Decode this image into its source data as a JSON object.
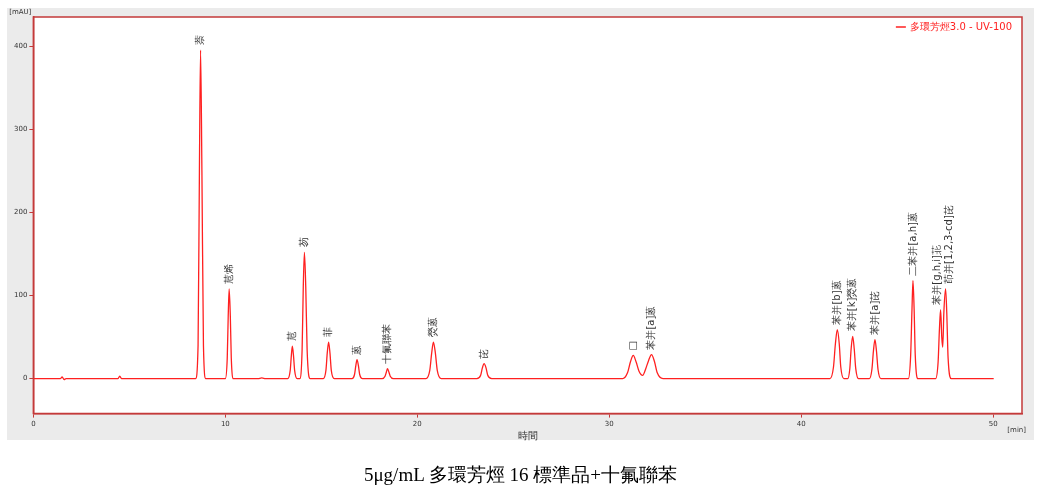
{
  "chart_data": {
    "type": "line",
    "title": "5μg/mL 多環芳烴 16 標準品+十氟聯苯",
    "xlabel": "時間",
    "ylabel": "[mAU]",
    "x": [
      0,
      1.4,
      1.5,
      1.6,
      1.7,
      4.4,
      4.5,
      4.6,
      8.45,
      8.58,
      8.65,
      8.71,
      8.78,
      8.86,
      8.98,
      10.0,
      10.1,
      10.15,
      10.2,
      10.26,
      10.31,
      10.42,
      11.7,
      11.9,
      12.1,
      13.25,
      13.38,
      13.44,
      13.49,
      13.55,
      13.61,
      13.74,
      13.88,
      14.0,
      14.06,
      14.12,
      14.19,
      14.26,
      14.42,
      15.1,
      15.24,
      15.31,
      15.38,
      15.45,
      15.52,
      15.68,
      16.6,
      16.73,
      16.8,
      16.86,
      16.93,
      17.0,
      17.15,
      18.17,
      18.32,
      18.39,
      18.45,
      18.52,
      18.59,
      18.76,
      20.45,
      20.65,
      20.75,
      20.84,
      20.94,
      21.04,
      21.25,
      23.1,
      23.3,
      23.39,
      23.48,
      23.58,
      23.67,
      23.88,
      30.7,
      30.95,
      31.1,
      31.25,
      31.4,
      31.55,
      31.74,
      31.9,
      32.05,
      32.2,
      32.35,
      32.5,
      32.8,
      41.5,
      41.68,
      41.78,
      41.88,
      41.98,
      42.06,
      42.22,
      42.42,
      42.53,
      42.6,
      42.68,
      42.76,
      42.84,
      42.98,
      43.55,
      43.68,
      43.76,
      43.84,
      43.92,
      44.0,
      44.15,
      45.58,
      45.7,
      45.77,
      45.82,
      45.88,
      45.94,
      46.08,
      47.0,
      47.13,
      47.2,
      47.26,
      47.32,
      47.37,
      47.43,
      47.52,
      47.58,
      47.65,
      47.82,
      50
    ],
    "series": [
      {
        "name": "多環芳烴3.0 - UV-100",
        "color": "#ff2020",
        "values": [
          0,
          0,
          2,
          -1,
          0,
          0,
          3,
          0,
          0,
          40,
          250,
          395,
          250,
          40,
          0,
          0,
          25,
          75,
          108,
          75,
          25,
          0,
          0,
          1,
          0,
          0,
          10,
          28,
          39,
          28,
          10,
          0,
          0,
          35,
          110,
          152,
          110,
          35,
          0,
          0,
          10,
          31,
          44,
          31,
          10,
          0,
          0,
          5,
          16,
          23,
          16,
          5,
          0,
          0,
          3,
          8,
          12,
          8,
          3,
          0,
          0,
          10,
          31,
          44,
          31,
          10,
          0,
          0,
          4,
          13,
          18,
          13,
          4,
          0,
          0,
          7,
          20,
          28,
          20,
          9,
          4,
          12,
          22,
          29,
          21,
          7,
          0,
          0,
          14,
          42,
          59,
          42,
          14,
          0,
          0,
          12,
          36,
          51,
          36,
          12,
          0,
          0,
          11,
          33,
          47,
          33,
          11,
          0,
          0,
          28,
          84,
          118,
          84,
          28,
          0,
          0,
          20,
          60,
          83,
          50,
          38,
          80,
          108,
          80,
          25,
          0,
          0
        ]
      }
    ],
    "xlim": [
      0,
      51.5
    ],
    "ylim": [
      -42,
      435
    ],
    "xticks": [
      0,
      10,
      20,
      30,
      40,
      50
    ],
    "yticks": [
      0,
      100,
      200,
      300,
      400
    ],
    "legend": "top right",
    "marker": "none",
    "line_style": "solid",
    "annotations": [
      {
        "text": "萘",
        "x": 8.71,
        "y": 395
      },
      {
        "text": "苊烯",
        "x": 10.2,
        "y": 108
      },
      {
        "text": "苊",
        "x": 13.49,
        "y": 39
      },
      {
        "text": "芴",
        "x": 14.12,
        "y": 152
      },
      {
        "text": "菲",
        "x": 15.38,
        "y": 44
      },
      {
        "text": "蒽",
        "x": 16.86,
        "y": 23
      },
      {
        "text": "十氟聯苯",
        "x": 18.45,
        "y": 12
      },
      {
        "text": "熒蒽",
        "x": 20.84,
        "y": 44
      },
      {
        "text": "芘",
        "x": 23.48,
        "y": 18
      },
      {
        "text": "□",
        "x": 31.25,
        "y": 28
      },
      {
        "text": "苯并[a]蒽",
        "x": 32.2,
        "y": 29
      },
      {
        "text": "苯并[b]蒽",
        "x": 41.88,
        "y": 59
      },
      {
        "text": "苯并[k]熒蒽",
        "x": 42.68,
        "y": 51
      },
      {
        "text": "苯并[a]芘",
        "x": 43.84,
        "y": 47
      },
      {
        "text": "二苯并[a,h]蒽",
        "x": 45.82,
        "y": 118
      },
      {
        "text": "苯并[g,h,i]苝",
        "x": 47.26,
        "y": 83
      },
      {
        "text": "茚并[1,2,3-cd]芘",
        "x": 47.52,
        "y": 108
      },
      "[min]"
    ]
  }
}
